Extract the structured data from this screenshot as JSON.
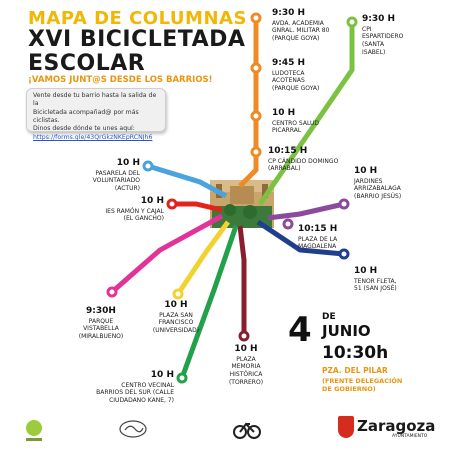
{
  "header": {
    "title_line1": "MAPA DE COLUMNAS",
    "title_line2": "XVI BICICLETADA",
    "title_line3": "ESCOLAR",
    "subtitle": "¡VAMOS JUNT@S DESDE LOS BARRIOS!"
  },
  "info": {
    "line1": "Vente desde tu barrio hasta la salida de la",
    "line2": "Bicicletada acompañad@ por más ciclistas.",
    "line3": "Dinos desde dónde te unes aquí:",
    "link": "https://forms.gle/43QrGkzNKEpRCNJh6"
  },
  "stops": [
    {
      "time": "9:30 H",
      "l1": "AVDA. ACADEMIA",
      "l2": "GNRAL. MILITAR 80",
      "l3": "(PARQUE GOYA)",
      "color": "#f08a24"
    },
    {
      "time": "9:45 H",
      "l1": "LUDOTECA",
      "l2": "ACOTENAS",
      "l3": "(PARQUE GOYA)",
      "color": "#f08a24"
    },
    {
      "time": "10 H",
      "l1": "CENTRO SALUD",
      "l2": "PICARRAL",
      "l3": "",
      "color": "#f08a24"
    },
    {
      "time": "10:15 H",
      "l1": "CP CÁNDIDO DOMINGO",
      "l2": "(ARRABAL)",
      "l3": "",
      "color": "#f08a24"
    },
    {
      "time": "9:30 H",
      "l1": "CPI",
      "l2": "ESPARTIDERO",
      "l3": "(SANTA",
      "l4": "ISABEL)",
      "color": "#7cc242"
    },
    {
      "time": "10 H",
      "l1": "JARDINES",
      "l2": "ARRIZABALAGA",
      "l3": "(BARRIO JESÚS)",
      "color": "#8b4a9c"
    },
    {
      "time": "10:15 H",
      "l1": "PLAZA DE LA",
      "l2": "MAGDALENA",
      "l3": "",
      "color": "#8b4a9c"
    },
    {
      "time": "10 H",
      "l1": "TENOR FLETA,",
      "l2": "51 (SAN JOSÉ)",
      "l3": "",
      "color": "#1f3e8c"
    },
    {
      "time": "10 H",
      "l1": "PASARELA DEL",
      "l2": "VOLUNTARIADO",
      "l3": "(ACTUR)",
      "color": "#4aa3df"
    },
    {
      "time": "10 H",
      "l1": "IES RAMÓN Y CAJAL",
      "l2": "(EL GANCHO)",
      "l3": "",
      "color": "#e3221b"
    },
    {
      "time": "9:30H",
      "l1": "PARQUE",
      "l2": "VISTABELLA",
      "l3": "(MIRALBUENO)",
      "color": "#e2339a"
    },
    {
      "time": "10 H",
      "l1": "PLAZA SAN",
      "l2": "FRANCISCO",
      "l3": "(UNIVERSIDAD)",
      "color": "#f2d22e"
    },
    {
      "time": "10 H",
      "l1": "PLAZA",
      "l2": "MEMORIA",
      "l3": "HISTÓRICA",
      "l4": "(TORRERO)",
      "color": "#8b1e2d"
    },
    {
      "time": "10 H",
      "l1": "CENTRO VECINAL",
      "l2": "BARRIOS DEL SUR (CALLE",
      "l3": "CIUDADANO KANE, 7)",
      "color": "#22a04a"
    }
  ],
  "event": {
    "day": "4",
    "de": "DE",
    "month": "JUNIO",
    "time": "10:30h",
    "place": "PZA. DEL PILAR",
    "place_note_l1": "(FRENTE DELEGACIÓN",
    "place_note_l2": "DE GOBIERNO)"
  },
  "footer": {
    "city": "Zaragoza",
    "city_sub": "AYUNTAMIENTO"
  }
}
